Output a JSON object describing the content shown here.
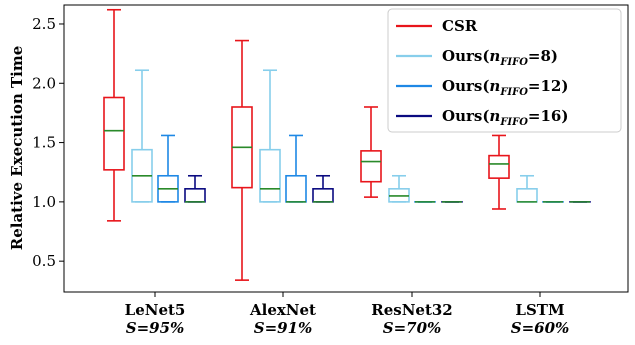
{
  "chart_data": {
    "type": "boxplot",
    "ylabel": "Relative Execution Time",
    "ylim": [
      0.24,
      2.66
    ],
    "yticks": [
      0.5,
      1.0,
      1.5,
      2.0,
      2.5
    ],
    "ytick_labels": [
      "0.5",
      "1.0",
      "1.5",
      "2.0",
      "2.5"
    ],
    "grid": false,
    "legend_position": "top-right",
    "categories": [
      {
        "name": "LeNet5",
        "sparsity": "S=95%"
      },
      {
        "name": "AlexNet",
        "sparsity": "S=91%"
      },
      {
        "name": "ResNet32",
        "sparsity": "S=70%"
      },
      {
        "name": "LSTM",
        "sparsity": "S=60%"
      }
    ],
    "sparsity_symbol": "S",
    "series": [
      {
        "name": "CSR",
        "legend_main": "CSR",
        "legend_sub": "",
        "legend_tail": "",
        "color": "#e8151b",
        "boxes": [
          {
            "whislo": 0.84,
            "q1": 1.27,
            "med": 1.6,
            "q3": 1.88,
            "whishi": 2.62
          },
          {
            "whislo": 0.34,
            "q1": 1.12,
            "med": 1.46,
            "q3": 1.8,
            "whishi": 2.36
          },
          {
            "whislo": 1.04,
            "q1": 1.17,
            "med": 1.34,
            "q3": 1.43,
            "whishi": 1.8
          },
          {
            "whislo": 0.94,
            "q1": 1.2,
            "med": 1.32,
            "q3": 1.39,
            "whishi": 1.56
          }
        ]
      },
      {
        "name": "Ours(nFIFO=8)",
        "legend_main": "Ours(",
        "legend_sub": "FIFO",
        "legend_tail": "=8)",
        "color": "#87ceeb",
        "boxes": [
          {
            "whislo": 1.0,
            "q1": 1.0,
            "med": 1.22,
            "q3": 1.44,
            "whishi": 2.11
          },
          {
            "whislo": 1.0,
            "q1": 1.0,
            "med": 1.11,
            "q3": 1.44,
            "whishi": 2.11
          },
          {
            "whislo": 1.0,
            "q1": 1.0,
            "med": 1.05,
            "q3": 1.11,
            "whishi": 1.22
          },
          {
            "whislo": 1.0,
            "q1": 1.0,
            "med": 1.0,
            "q3": 1.11,
            "whishi": 1.22
          }
        ]
      },
      {
        "name": "Ours(nFIFO=12)",
        "legend_main": "Ours(",
        "legend_sub": "FIFO",
        "legend_tail": "=12)",
        "color": "#1e88e5",
        "boxes": [
          {
            "whislo": 1.0,
            "q1": 1.0,
            "med": 1.11,
            "q3": 1.22,
            "whishi": 1.56
          },
          {
            "whislo": 1.0,
            "q1": 1.0,
            "med": 1.0,
            "q3": 1.22,
            "whishi": 1.56
          },
          {
            "whislo": 1.0,
            "q1": 1.0,
            "med": 1.0,
            "q3": 1.0,
            "whishi": 1.0
          },
          {
            "whislo": 1.0,
            "q1": 1.0,
            "med": 1.0,
            "q3": 1.0,
            "whishi": 1.0
          }
        ]
      },
      {
        "name": "Ours(nFIFO=16)",
        "legend_main": "Ours(",
        "legend_sub": "FIFO",
        "legend_tail": "=16)",
        "color": "#0a0a80",
        "boxes": [
          {
            "whislo": 1.0,
            "q1": 1.0,
            "med": 1.0,
            "q3": 1.11,
            "whishi": 1.22
          },
          {
            "whislo": 1.0,
            "q1": 1.0,
            "med": 1.0,
            "q3": 1.11,
            "whishi": 1.22
          },
          {
            "whislo": 1.0,
            "q1": 1.0,
            "med": 1.0,
            "q3": 1.0,
            "whishi": 1.0
          },
          {
            "whislo": 1.0,
            "q1": 1.0,
            "med": 1.0,
            "q3": 1.0,
            "whishi": 1.0
          }
        ]
      }
    ],
    "median_color": "#2a8a2a"
  }
}
